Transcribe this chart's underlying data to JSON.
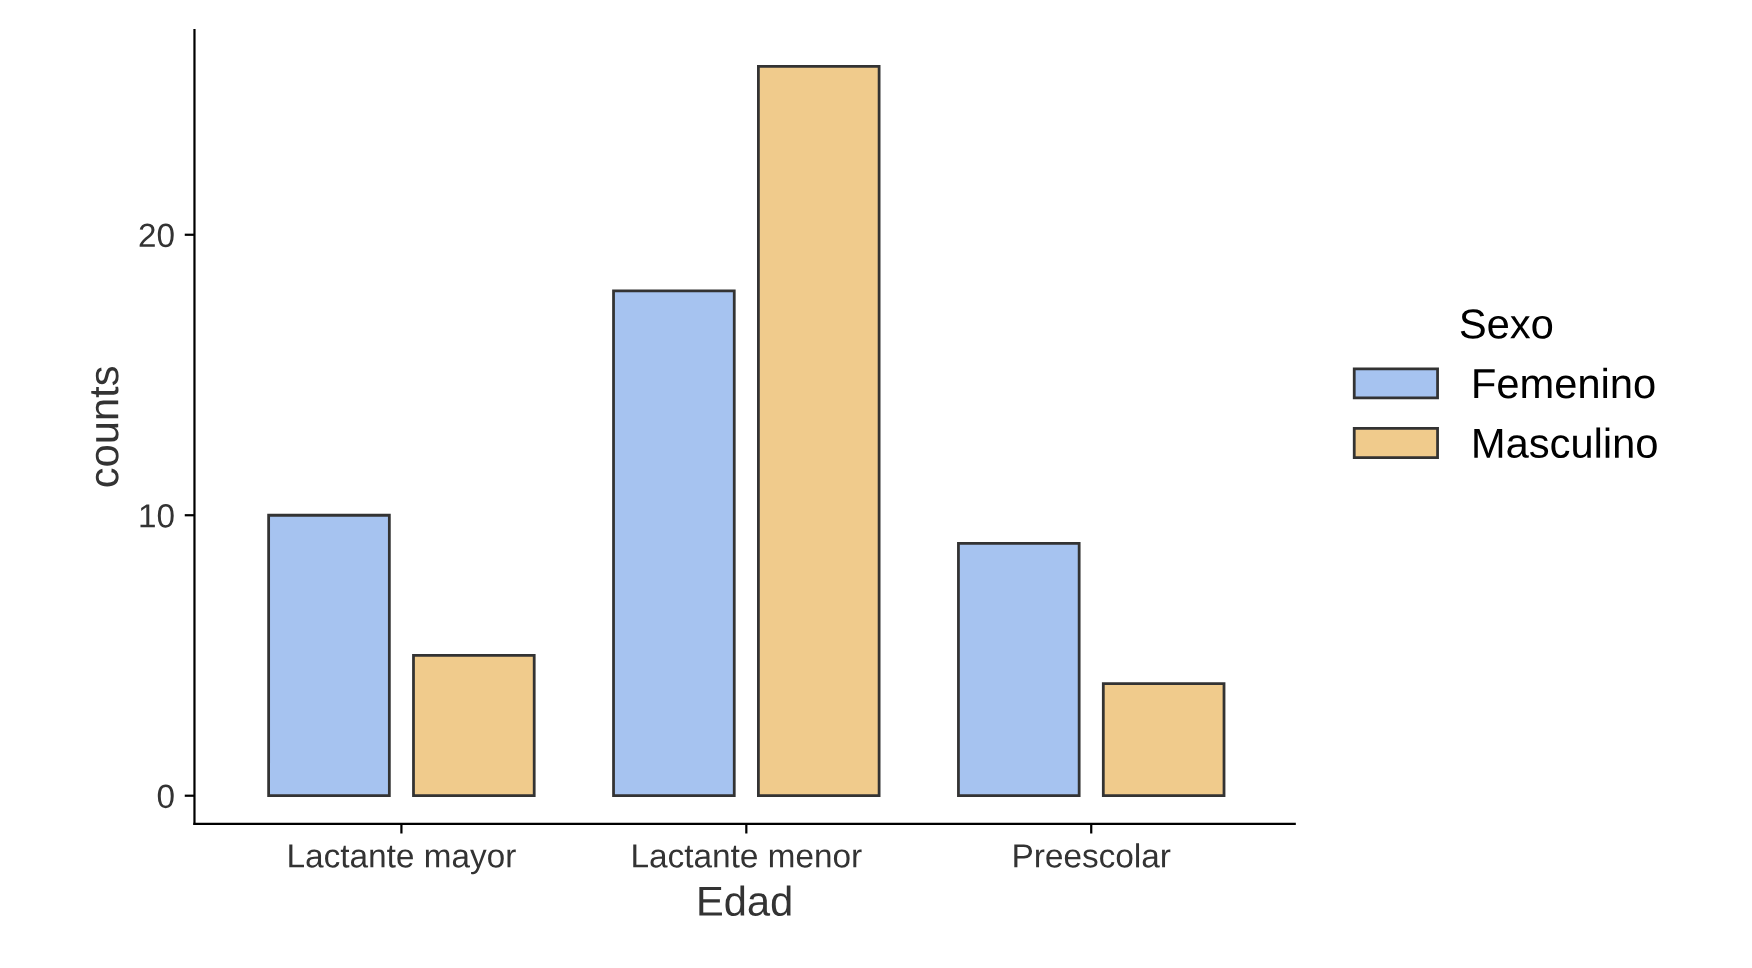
{
  "chart_data": {
    "type": "bar",
    "xlabel": "Edad",
    "ylabel": "counts",
    "legend_title": "Sexo",
    "categories": [
      "Lactante mayor",
      "Lactante menor",
      "Preescolar"
    ],
    "series": [
      {
        "name": "Femenino",
        "color": "#a6c3f0",
        "values": [
          10,
          18,
          9
        ]
      },
      {
        "name": "Masculino",
        "color": "#f0cb8c",
        "values": [
          5,
          26,
          4
        ]
      }
    ],
    "ylim": [
      -1,
      27.3
    ],
    "yticks": [
      0,
      10,
      20
    ],
    "grid": false,
    "legend": "right"
  }
}
